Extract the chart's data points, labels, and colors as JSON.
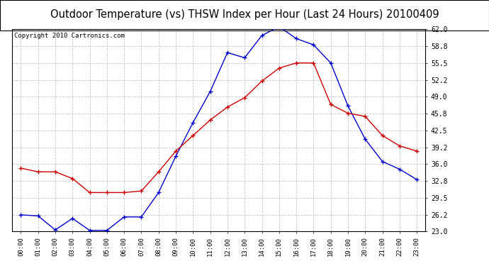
{
  "title": "Outdoor Temperature (vs) THSW Index per Hour (Last 24 Hours) 20100409",
  "copyright": "Copyright 2010 Cartronics.com",
  "hours": [
    "00:00",
    "01:00",
    "02:00",
    "03:00",
    "04:00",
    "05:00",
    "06:00",
    "07:00",
    "08:00",
    "09:00",
    "10:00",
    "11:00",
    "12:00",
    "13:00",
    "14:00",
    "15:00",
    "16:00",
    "17:00",
    "18:00",
    "19:00",
    "20:00",
    "21:00",
    "22:00",
    "23:00"
  ],
  "outdoor_temp": [
    35.2,
    34.5,
    34.5,
    33.2,
    30.5,
    30.5,
    30.5,
    30.8,
    34.5,
    38.5,
    41.5,
    44.5,
    47.0,
    48.8,
    52.0,
    54.5,
    55.5,
    55.5,
    47.5,
    45.8,
    45.2,
    41.5,
    39.5,
    38.5
  ],
  "thsw_index": [
    26.2,
    26.0,
    23.3,
    25.5,
    23.2,
    23.2,
    25.8,
    25.8,
    30.5,
    37.5,
    44.0,
    50.0,
    57.5,
    56.5,
    60.8,
    62.5,
    60.2,
    59.0,
    55.5,
    47.2,
    40.8,
    36.5,
    35.0,
    33.0
  ],
  "ylim": [
    23.0,
    62.0
  ],
  "yticks": [
    23.0,
    26.2,
    29.5,
    32.8,
    36.0,
    39.2,
    42.5,
    45.8,
    49.0,
    52.2,
    55.5,
    58.8,
    62.0
  ],
  "temp_color": "#cc0000",
  "thsw_color": "#0000cc",
  "bg_color": "#ffffff",
  "grid_color": "#bbbbbb",
  "title_color": "#000000",
  "title_fontsize": 10.5,
  "copyright_fontsize": 6.5,
  "border_color": "#000000"
}
